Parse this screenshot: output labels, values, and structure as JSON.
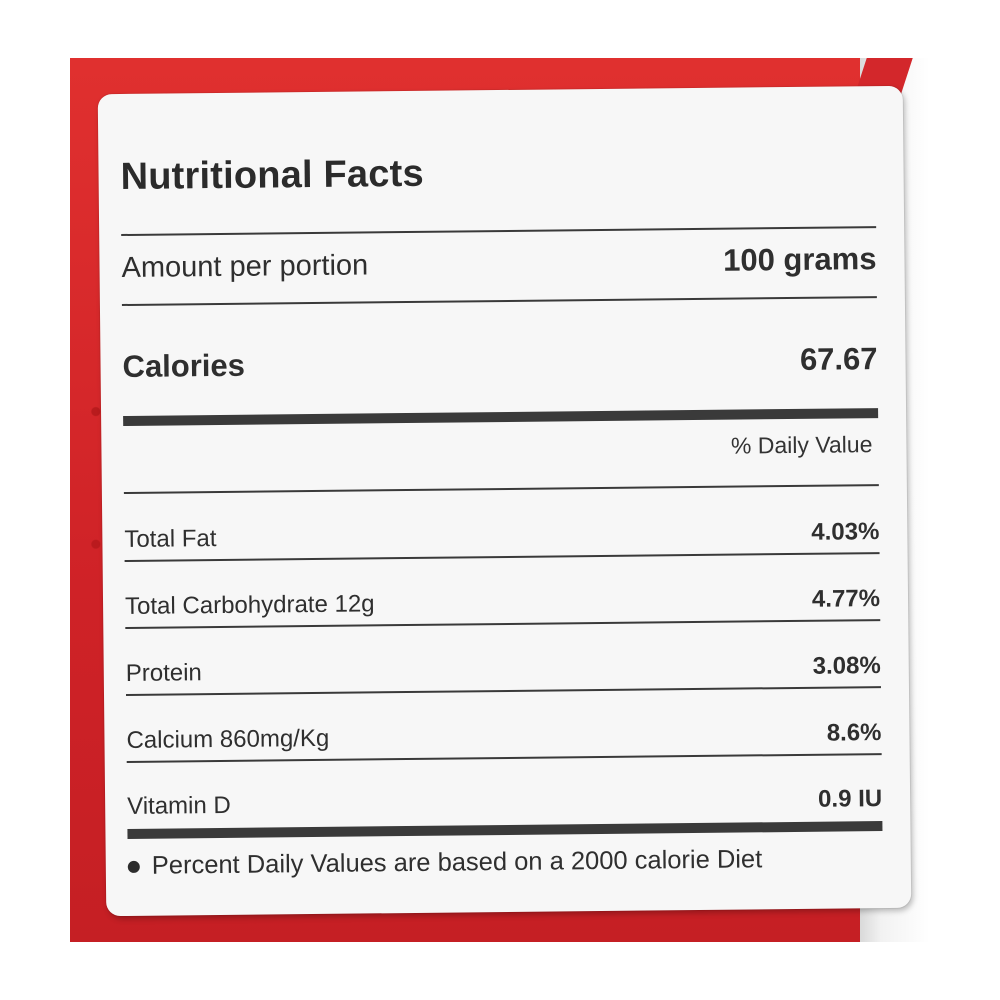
{
  "label": {
    "title": "Nutritional Facts",
    "portion": {
      "name": "Amount per portion",
      "value": "100 grams"
    },
    "calories": {
      "name": "Calories",
      "value": "67.67"
    },
    "daily_value_header": "% Daily Value",
    "nutrients": [
      {
        "name": "Total Fat",
        "value": "4.03%"
      },
      {
        "name": "Total Carbohydrate 12g",
        "value": "4.77%"
      },
      {
        "name": "Protein",
        "value": "3.08%"
      },
      {
        "name": "Calcium 860mg/Kg",
        "value": "8.6%"
      },
      {
        "name": "Vitamin D",
        "value": "0.9 IU"
      }
    ],
    "footnote": "Percent Daily Values are based on a 2000 calorie Diet"
  },
  "colors": {
    "package_red": "#d8262a",
    "label_white": "#f7f7f7",
    "text_dark": "#2d2d2d"
  }
}
